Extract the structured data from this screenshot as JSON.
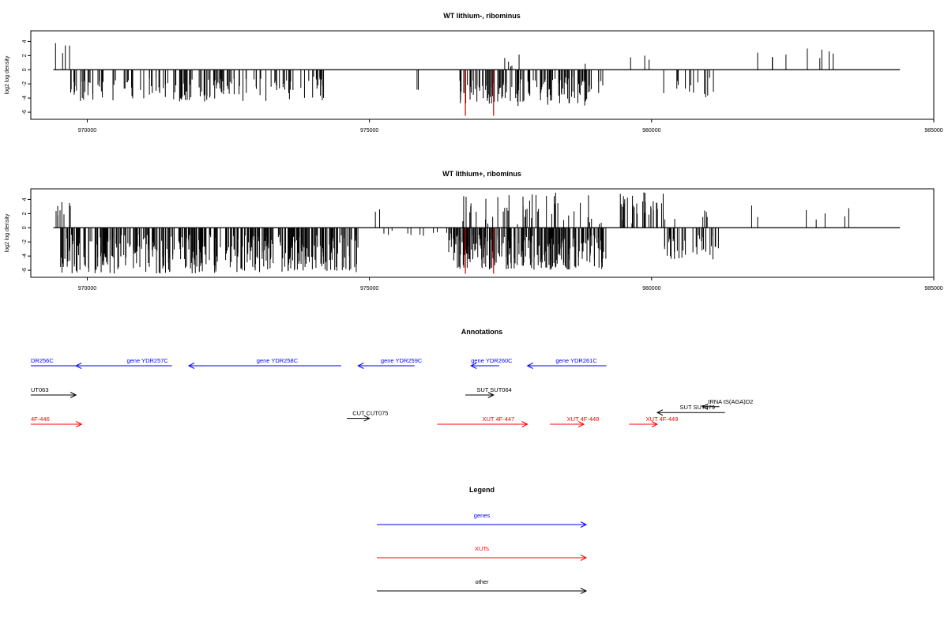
{
  "chart_data": [
    {
      "type": "bar",
      "title": "WT lithium-, ribominus",
      "ylabel": "log2 log density",
      "xlim": [
        969000,
        985000
      ],
      "ylim": [
        -7,
        5.5
      ],
      "x_ticks": [
        970000,
        975000,
        980000,
        985000
      ],
      "y_ticks": [
        4,
        2,
        0,
        -2,
        -4,
        -6
      ],
      "grid": false,
      "baseline": {
        "x_range": [
          969400,
          984400
        ],
        "y": 0
      },
      "bars": {
        "description_regions": [
          {
            "x_range": [
              969400,
              969700
            ],
            "y_range": [
              1.5,
              4
            ],
            "count": 4,
            "seed": 1
          },
          {
            "x_range": [
              969700,
              972600
            ],
            "y_range": [
              -4.5,
              -1.2
            ],
            "count": 90,
            "seed": 2
          },
          {
            "x_range": [
              971700,
              974300
            ],
            "y_range": [
              -4.5,
              -1.2
            ],
            "count": 60,
            "seed": 3
          },
          {
            "x_range": [
              974000,
              974200
            ],
            "y_range": [
              -1.5,
              -0.8
            ],
            "count": 4,
            "seed": 4
          },
          {
            "x_range": [
              975600,
              975900
            ],
            "y_range": [
              -3.2,
              -2.5
            ],
            "count": 2,
            "seed": 5
          },
          {
            "x_range": [
              976600,
              977400
            ],
            "y_range": [
              -4.8,
              -1.5
            ],
            "count": 45,
            "seed": 6
          },
          {
            "x_range": [
              977300,
              977700
            ],
            "y_range": [
              0.2,
              3.5
            ],
            "count": 5,
            "seed": 7
          },
          {
            "x_range": [
              977400,
              979200
            ],
            "y_range": [
              -5.2,
              -1.0
            ],
            "count": 95,
            "seed": 8
          },
          {
            "x_range": [
              978800,
              978900
            ],
            "y_range": [
              0.5,
              1.0
            ],
            "count": 1,
            "seed": 9
          },
          {
            "x_range": [
              979600,
              980000
            ],
            "y_range": [
              1.0,
              2.5
            ],
            "count": 3,
            "seed": 10
          },
          {
            "x_range": [
              980100,
              981200
            ],
            "y_range": [
              -4.0,
              -1.0
            ],
            "count": 14,
            "seed": 11
          },
          {
            "x_range": [
              981500,
              983500
            ],
            "y_range": [
              1.5,
              3.0
            ],
            "count": 9,
            "seed": 12
          }
        ],
        "red_bars": [
          {
            "x": 976700,
            "y": -6.5
          },
          {
            "x": 977200,
            "y": -6.5
          }
        ]
      }
    },
    {
      "type": "bar",
      "title": "WT lithium+, ribominus",
      "ylabel": "log2 log density",
      "xlim": [
        969000,
        985000
      ],
      "ylim": [
        -7,
        5.5
      ],
      "x_ticks": [
        970000,
        975000,
        980000,
        985000
      ],
      "y_ticks": [
        4,
        2,
        0,
        -2,
        -4,
        -6
      ],
      "grid": false,
      "baseline": {
        "x_range": [
          969400,
          984400
        ],
        "y": 0
      },
      "bars": {
        "description_regions": [
          {
            "x_range": [
              969400,
              969700
            ],
            "y_range": [
              1.0,
              4.0
            ],
            "count": 8,
            "seed": 21
          },
          {
            "x_range": [
              969500,
              974800
            ],
            "y_range": [
              -6.5,
              -1.0
            ],
            "count": 380,
            "seed": 22
          },
          {
            "x_range": [
              974900,
              975200
            ],
            "y_range": [
              1.5,
              2.8
            ],
            "count": 2,
            "seed": 23
          },
          {
            "x_range": [
              975200,
              976500
            ],
            "y_range": [
              -1.2,
              -0.3
            ],
            "count": 12,
            "seed": 24
          },
          {
            "x_range": [
              976400,
              979200
            ],
            "y_range": [
              -6.0,
              -1.0
            ],
            "count": 260,
            "seed": 25
          },
          {
            "x_range": [
              976600,
              979200
            ],
            "y_range": [
              0.5,
              5.0
            ],
            "count": 45,
            "seed": 26
          },
          {
            "x_range": [
              979400,
              980300
            ],
            "y_range": [
              0.5,
              5.0
            ],
            "count": 35,
            "seed": 27
          },
          {
            "x_range": [
              980200,
              981200
            ],
            "y_range": [
              -4.5,
              -1.0
            ],
            "count": 40,
            "seed": 28
          },
          {
            "x_range": [
              980400,
              981000
            ],
            "y_range": [
              1.0,
              3.0
            ],
            "count": 5,
            "seed": 29
          },
          {
            "x_range": [
              981500,
              983500
            ],
            "y_range": [
              1.0,
              3.5
            ],
            "count": 7,
            "seed": 30
          }
        ],
        "red_bars": [
          {
            "x": 976700,
            "y": -6.5
          },
          {
            "x": 977200,
            "y": -6.5
          }
        ]
      }
    }
  ],
  "annotations": {
    "title": "Annotations",
    "xlim": [
      969000,
      985000
    ],
    "rows": [
      {
        "text": "DR256C",
        "color": "#0000ff",
        "from": 969800,
        "to": 969000,
        "text_x": 969000,
        "arrow_dir": "none",
        "row": 0
      },
      {
        "text": "gene YDR257C",
        "color": "#0000ff",
        "from": 971500,
        "to": 969800,
        "text_x": 970700,
        "arrow_dir": "left",
        "row": 0
      },
      {
        "text": "gene YDR258C",
        "color": "#0000ff",
        "from": 974500,
        "to": 971800,
        "text_x": 973000,
        "arrow_dir": "left",
        "row": 0
      },
      {
        "text": "gene YDR259C",
        "color": "#0000ff",
        "from": 975800,
        "to": 974800,
        "text_x": 975200,
        "arrow_dir": "left",
        "row": 0
      },
      {
        "text": "gene YDR260C",
        "color": "#0000ff",
        "from": 977300,
        "to": 976800,
        "text_x": 976800,
        "arrow_dir": "left",
        "row": 0
      },
      {
        "text": "gene YDR261C",
        "color": "#0000ff",
        "from": 979200,
        "to": 977800,
        "text_x": 978300,
        "arrow_dir": "left",
        "row": 0
      },
      {
        "text": "UT063",
        "color": "#000000",
        "from": 969000,
        "to": 969800,
        "text_x": 969000,
        "arrow_dir": "right",
        "row": 1
      },
      {
        "text": "SUT SUT064",
        "color": "#000000",
        "from": 976700,
        "to": 977200,
        "text_x": 976900,
        "arrow_dir": "right",
        "row": 1
      },
      {
        "text": "tRNA tS(AGA)D2",
        "color": "#000000",
        "from": 981200,
        "to": 980900,
        "text_x": 981000,
        "arrow_dir": "left",
        "row": 1.4
      },
      {
        "text": "SUT SUT479",
        "color": "#000000",
        "from": 981300,
        "to": 980100,
        "text_x": 980500,
        "arrow_dir": "left",
        "row": 1.6
      },
      {
        "text": "CUT CUT075",
        "color": "#000000",
        "from": 974600,
        "to": 975000,
        "text_x": 974700,
        "arrow_dir": "right",
        "row": 1.8
      },
      {
        "text": "4F-446",
        "color": "#ff0000",
        "from": 969000,
        "to": 969900,
        "text_x": 969000,
        "arrow_dir": "right",
        "row": 2
      },
      {
        "text": "XUT 4F-447",
        "color": "#ff0000",
        "from": 976200,
        "to": 977800,
        "text_x": 977000,
        "arrow_dir": "right",
        "row": 2
      },
      {
        "text": "XUT 4F-448",
        "color": "#ff0000",
        "from": 978200,
        "to": 978800,
        "text_x": 978500,
        "arrow_dir": "right",
        "row": 2
      },
      {
        "text": "XUT 4F-449",
        "color": "#ff0000",
        "from": 979600,
        "to": 980100,
        "text_x": 979900,
        "arrow_dir": "right",
        "row": 2
      }
    ]
  },
  "legend": {
    "title": "Legend",
    "items": [
      {
        "label": "genes",
        "color": "#0000ff"
      },
      {
        "label": "XUTs",
        "color": "#ff0000"
      },
      {
        "label": "other",
        "color": "#000000"
      }
    ]
  }
}
